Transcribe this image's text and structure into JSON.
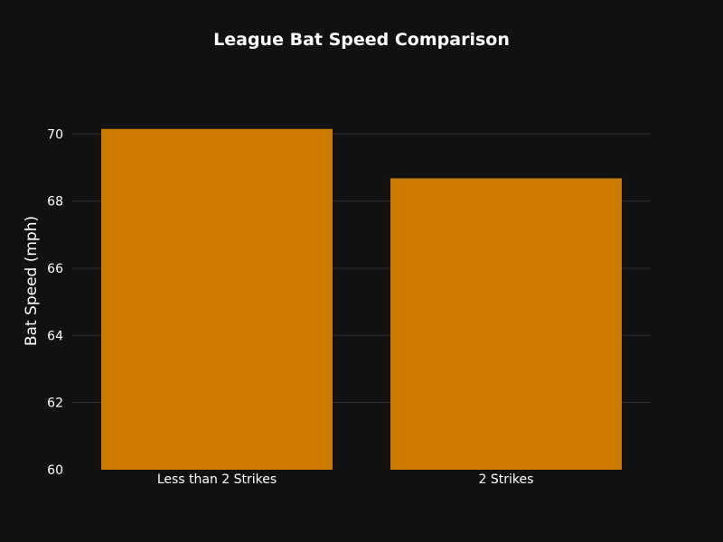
{
  "chart_data": {
    "type": "bar",
    "title": "League Bat Speed Comparison",
    "xlabel": "",
    "ylabel": "Bat Speed (mph)",
    "categories": [
      "Less than 2 Strikes",
      "2 Strikes"
    ],
    "values": [
      70.15,
      68.68
    ],
    "ylim": [
      60,
      71.3
    ],
    "yticks": [
      60,
      62,
      64,
      66,
      68,
      70
    ],
    "grid": true,
    "bar_color": "#cc7a00",
    "background": "#111111",
    "gridline_color": "#2a2f3a"
  }
}
